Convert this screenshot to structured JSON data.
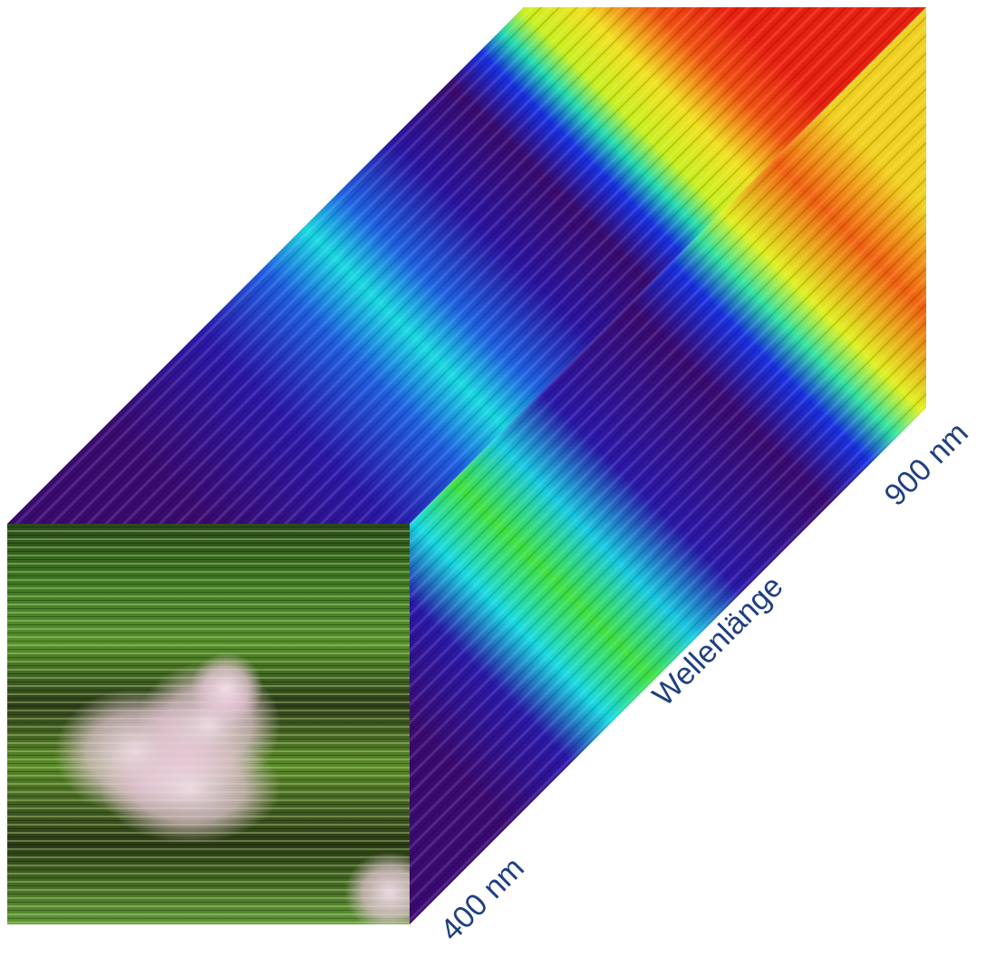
{
  "labels": {
    "start": "400 nm",
    "axis": "Wellenlänge",
    "end": "900 nm"
  }
}
